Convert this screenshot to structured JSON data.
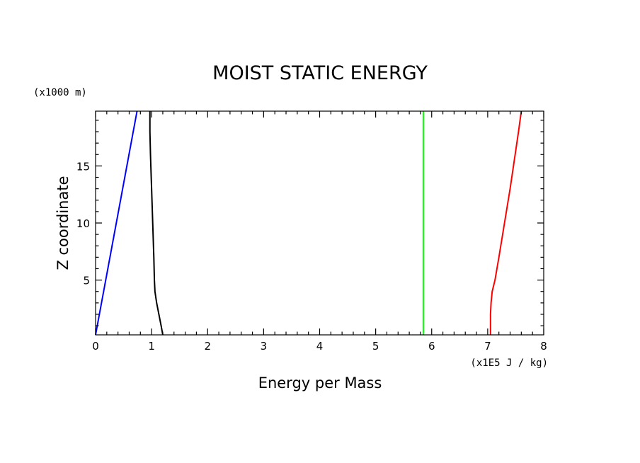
{
  "chart_data": {
    "type": "line",
    "title": "MOIST STATIC ENERGY",
    "xlabel": "Energy per Mass",
    "ylabel": "Z coordinate",
    "x_units": "(x1E5 J / kg)",
    "y_units": "(x1000 m)",
    "xlim": [
      0,
      8
    ],
    "ylim": [
      0.2,
      19.8
    ],
    "x_ticks": [
      "0",
      "1",
      "2",
      "3",
      "4",
      "5",
      "6",
      "7",
      "8"
    ],
    "y_ticks": [
      "5",
      "10",
      "15"
    ],
    "grid": false,
    "legend": "none",
    "series": [
      {
        "color": "#0000ff",
        "points": [
          [
            0.0,
            0.2
          ],
          [
            0.74,
            19.8
          ]
        ]
      },
      {
        "color": "#000000",
        "points": [
          [
            1.2,
            0.2
          ],
          [
            1.17,
            1.0
          ],
          [
            1.13,
            2.0
          ],
          [
            1.09,
            3.0
          ],
          [
            1.06,
            4.0
          ],
          [
            1.05,
            5.0
          ],
          [
            1.04,
            7.0
          ],
          [
            1.02,
            10.0
          ],
          [
            1.0,
            13.0
          ],
          [
            0.98,
            16.0
          ],
          [
            0.97,
            18.0
          ],
          [
            0.97,
            19.8
          ]
        ]
      },
      {
        "color": "#00ff00",
        "points": [
          [
            5.85,
            0.2
          ],
          [
            5.85,
            19.8
          ]
        ]
      },
      {
        "color": "#ff0000",
        "points": [
          [
            7.05,
            0.2
          ],
          [
            7.05,
            2.0
          ],
          [
            7.06,
            3.0
          ],
          [
            7.08,
            4.0
          ],
          [
            7.13,
            5.0
          ],
          [
            7.2,
            7.0
          ],
          [
            7.3,
            10.0
          ],
          [
            7.4,
            13.0
          ],
          [
            7.49,
            16.0
          ],
          [
            7.55,
            18.0
          ],
          [
            7.6,
            19.8
          ]
        ]
      }
    ]
  }
}
